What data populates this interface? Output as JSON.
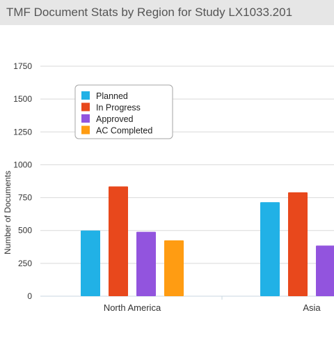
{
  "header": {
    "title": "TMF Document Stats by Region for Study LX1033.201"
  },
  "chart_data": {
    "type": "bar",
    "title": "",
    "xlabel": "",
    "ylabel": "Number of Documents",
    "ylim": [
      0,
      1750
    ],
    "yticks": [
      0,
      250,
      500,
      750,
      1000,
      1250,
      1500,
      1750
    ],
    "grid": true,
    "legend_position": "top-left",
    "categories": [
      "North America",
      "Asia"
    ],
    "series": [
      {
        "name": "Planned",
        "color": "#21b1e6",
        "values": [
          500,
          715
        ]
      },
      {
        "name": "In Progress",
        "color": "#e8481c",
        "values": [
          835,
          790
        ]
      },
      {
        "name": "Approved",
        "color": "#9254de",
        "values": [
          490,
          385
        ]
      },
      {
        "name": "AC Completed",
        "color": "#ff9c12",
        "values": [
          425,
          null
        ]
      }
    ]
  }
}
